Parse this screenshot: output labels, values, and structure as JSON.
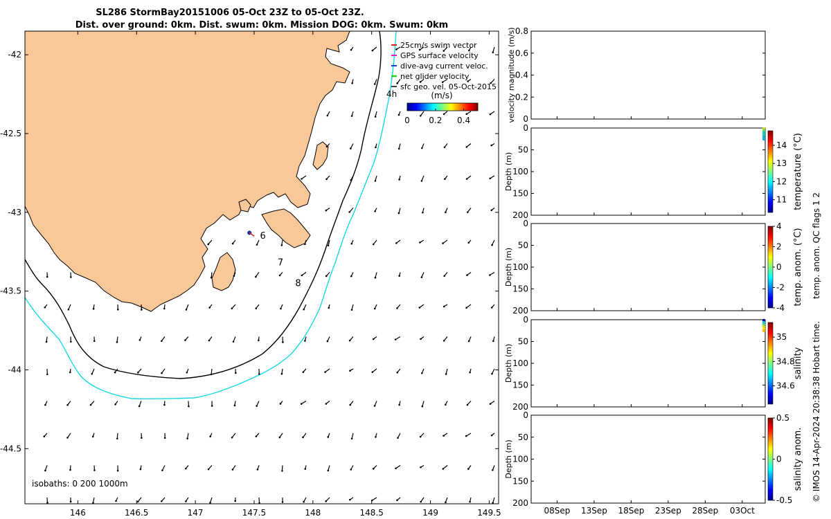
{
  "chart_data": {
    "type": "map_with_profiles",
    "title": {
      "line1": "SL286 StormBay20151006 05-Oct 23Z to 05-Oct 23Z.",
      "line2": "Dist. over ground: 0km. Dist. swum: 0km. Mission DOG: 0km. Swum: 0km"
    },
    "map": {
      "lon_range": [
        145.55,
        149.58
      ],
      "lat_range": [
        -44.85,
        -41.85
      ],
      "x_ticks": [
        "146",
        "146.5",
        "147",
        "147.5",
        "148",
        "148.5",
        "149",
        "149.5"
      ],
      "x_tick_values": [
        146,
        146.5,
        147,
        147.5,
        148,
        148.5,
        149,
        149.5
      ],
      "y_ticks": [
        "-42",
        "-42.5",
        "-43",
        "-43.5",
        "-44",
        "-44.5"
      ],
      "y_tick_values": [
        -42,
        -42.5,
        -43,
        -43.5,
        -44,
        -44.5
      ],
      "isobaths_label": "isobaths: 0   200  1000m",
      "legend": [
        {
          "label": "25cm/s swim vector",
          "color": "#e02020"
        },
        {
          "label": "GPS surface velocity",
          "color": "#d020d0"
        },
        {
          "label": "dive-avg current veloc.",
          "color": "#1040d0"
        },
        {
          "label": "net glider velocity",
          "color": "#20d020"
        },
        {
          "label": "sfc geo. vel. 05-Oct-2015",
          "color": "#000000"
        }
      ],
      "hour_label": "4h",
      "colorbar": {
        "label": "(m/s)",
        "ticks": [
          "0",
          "0.2",
          "0.4"
        ],
        "tick_values": [
          0,
          0.2,
          0.4
        ],
        "range": [
          0,
          0.5
        ]
      },
      "waypoints": [
        {
          "label": "6",
          "lon": 147.55,
          "lat": -43.15
        },
        {
          "label": "7",
          "lon": 147.7,
          "lat": -43.32
        },
        {
          "label": "8",
          "lon": 147.85,
          "lat": -43.45
        }
      ],
      "glider_position": {
        "lon": 147.46,
        "lat": -43.13
      }
    },
    "panels": [
      {
        "name": "velocity",
        "ylabel": "velocity magnitude (m/s)",
        "ylim": [
          0,
          0.8
        ],
        "y_ticks": [
          "0",
          "0.2",
          "0.4",
          "0.6",
          "0.8"
        ],
        "y_tick_values": [
          0,
          0.2,
          0.4,
          0.6,
          0.8
        ]
      },
      {
        "name": "temperature",
        "ylabel": "Depth (m)",
        "clabel": "temperature (°C)",
        "y_ticks": [
          "0",
          "50",
          "100",
          "150",
          "200"
        ],
        "y_tick_values": [
          0,
          50,
          100,
          150,
          200
        ],
        "c_ticks": [
          "11",
          "12",
          "13",
          "14"
        ],
        "c_tick_values": [
          11,
          12,
          13,
          14
        ],
        "crange": [
          10.3,
          14.8
        ]
      },
      {
        "name": "temp_anom",
        "ylabel": "Depth (m)",
        "clabel": "temp. anom. (°C)",
        "y_ticks": [
          "0",
          "50",
          "100",
          "150",
          "200"
        ],
        "y_tick_values": [
          0,
          50,
          100,
          150,
          200
        ],
        "c_ticks": [
          "-4",
          "-2",
          "0",
          "2",
          "4"
        ],
        "c_tick_values": [
          -4,
          -2,
          0,
          2,
          4
        ],
        "crange": [
          -4,
          4
        ]
      },
      {
        "name": "salinity",
        "ylabel": "Depth (m)",
        "clabel": "salinity",
        "y_ticks": [
          "0",
          "50",
          "100",
          "150",
          "200"
        ],
        "y_tick_values": [
          0,
          50,
          100,
          150,
          200
        ],
        "c_ticks": [
          "34.6",
          "34.8",
          "35"
        ],
        "c_tick_values": [
          34.6,
          34.8,
          35
        ],
        "crange": [
          34.45,
          35.12
        ]
      },
      {
        "name": "salinity_anom",
        "ylabel": "Depth (m)",
        "clabel": "salinity anom.",
        "y_ticks": [
          "0",
          "50",
          "100",
          "150",
          "200"
        ],
        "y_tick_values": [
          0,
          50,
          100,
          150,
          200
        ],
        "c_ticks": [
          "-0.5",
          "0",
          "0.5"
        ],
        "c_tick_values": [
          -0.5,
          0,
          0.5
        ],
        "crange": [
          -0.5,
          0.5
        ]
      }
    ],
    "time_axis": {
      "labels": [
        "08Sep",
        "13Sep",
        "18Sep",
        "23Sep",
        "28Sep",
        "03Oct"
      ],
      "day_values": [
        0,
        5,
        10,
        15,
        20,
        25
      ],
      "range_days": [
        -3.5,
        28.1
      ]
    },
    "qc_label": "temp. anom. QC flags 1  2",
    "credit": "© IMOS 14-Apr-2024 20:38:38 Hobart time."
  }
}
